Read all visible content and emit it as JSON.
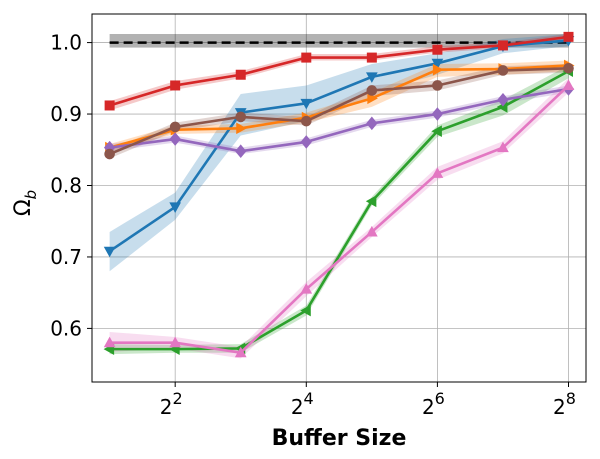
{
  "chart_data": {
    "type": "line",
    "xlabel": "Buffer Size",
    "ylabel": "Ω",
    "ylabel_subscript": "b",
    "x_scale": "log2",
    "x": [
      2,
      4,
      8,
      16,
      32,
      64,
      128,
      256
    ],
    "xticks": [
      4,
      16,
      64,
      256
    ],
    "xtick_labels": [
      {
        "base": "2",
        "exp": "2"
      },
      {
        "base": "2",
        "exp": "4"
      },
      {
        "base": "2",
        "exp": "6"
      },
      {
        "base": "2",
        "exp": "8"
      }
    ],
    "xlim": [
      1.66,
      308
    ],
    "ylim": [
      0.525,
      1.04
    ],
    "yticks": [
      0.6,
      0.7,
      0.8,
      0.9,
      1.0
    ],
    "ytick_labels": [
      "0.6",
      "0.7",
      "0.8",
      "0.9",
      "1.0"
    ],
    "grid": true,
    "reference": {
      "value": 1.0,
      "band": [
        0.993,
        1.012
      ],
      "x_range": [
        2,
        256
      ],
      "color": "#000000",
      "style": "dashed"
    },
    "series": [
      {
        "color": "#1f77b4",
        "marker": "triangle-down",
        "values": [
          0.708,
          0.77,
          0.902,
          0.915,
          0.952,
          0.971,
          0.995,
          1.003
        ],
        "band": [
          [
            0.68,
            0.735
          ],
          [
            0.752,
            0.79
          ],
          [
            0.87,
            0.928
          ],
          [
            0.89,
            0.94
          ],
          [
            0.93,
            0.97
          ],
          [
            0.955,
            0.985
          ],
          [
            0.985,
            1.005
          ],
          [
            0.995,
            1.012
          ]
        ]
      },
      {
        "color": "#ff7f0e",
        "marker": "triangle-right",
        "values": [
          0.853,
          0.878,
          0.88,
          0.895,
          0.922,
          0.962,
          0.963,
          0.968
        ],
        "band": [
          [
            0.848,
            0.858
          ],
          [
            0.872,
            0.884
          ],
          [
            0.874,
            0.886
          ],
          [
            0.888,
            0.902
          ],
          [
            0.91,
            0.93
          ],
          [
            0.952,
            0.97
          ],
          [
            0.955,
            0.971
          ],
          [
            0.96,
            0.975
          ]
        ]
      },
      {
        "color": "#2ca02c",
        "marker": "triangle-left",
        "values": [
          0.571,
          0.571,
          0.572,
          0.625,
          0.778,
          0.876,
          0.91,
          0.96
        ],
        "band": [
          [
            0.564,
            0.578
          ],
          [
            0.566,
            0.577
          ],
          [
            0.566,
            0.578
          ],
          [
            0.618,
            0.632
          ],
          [
            0.772,
            0.784
          ],
          [
            0.868,
            0.884
          ],
          [
            0.898,
            0.92
          ],
          [
            0.95,
            0.968
          ]
        ]
      },
      {
        "color": "#d62728",
        "marker": "square",
        "values": [
          0.912,
          0.94,
          0.955,
          0.979,
          0.979,
          0.99,
          0.996,
          1.008
        ],
        "band": [
          [
            0.905,
            0.918
          ],
          [
            0.934,
            0.946
          ],
          [
            0.95,
            0.96
          ],
          [
            0.975,
            0.984
          ],
          [
            0.975,
            0.984
          ],
          [
            0.986,
            0.995
          ],
          [
            0.992,
            1.0
          ],
          [
            1.004,
            1.012
          ]
        ]
      },
      {
        "color": "#9467bd",
        "marker": "diamond",
        "values": [
          0.853,
          0.865,
          0.848,
          0.861,
          0.887,
          0.9,
          0.92,
          0.935
        ],
        "band": [
          [
            0.848,
            0.858
          ],
          [
            0.86,
            0.87
          ],
          [
            0.844,
            0.853
          ],
          [
            0.856,
            0.866
          ],
          [
            0.882,
            0.892
          ],
          [
            0.895,
            0.905
          ],
          [
            0.915,
            0.925
          ],
          [
            0.93,
            0.94
          ]
        ]
      },
      {
        "color": "#8c564b",
        "marker": "circle",
        "values": [
          0.844,
          0.882,
          0.896,
          0.89,
          0.933,
          0.94,
          0.961,
          0.964
        ],
        "band": [
          [
            0.838,
            0.85
          ],
          [
            0.876,
            0.888
          ],
          [
            0.89,
            0.902
          ],
          [
            0.884,
            0.896
          ],
          [
            0.925,
            0.94
          ],
          [
            0.933,
            0.947
          ],
          [
            0.955,
            0.967
          ],
          [
            0.958,
            0.97
          ]
        ]
      },
      {
        "color": "#e377c2",
        "marker": "triangle-up",
        "values": [
          0.58,
          0.58,
          0.566,
          0.655,
          0.735,
          0.817,
          0.853,
          0.94
        ],
        "band": [
          [
            0.567,
            0.595
          ],
          [
            0.572,
            0.588
          ],
          [
            0.558,
            0.574
          ],
          [
            0.645,
            0.665
          ],
          [
            0.728,
            0.742
          ],
          [
            0.808,
            0.826
          ],
          [
            0.845,
            0.862
          ],
          [
            0.93,
            0.95
          ]
        ]
      }
    ]
  }
}
